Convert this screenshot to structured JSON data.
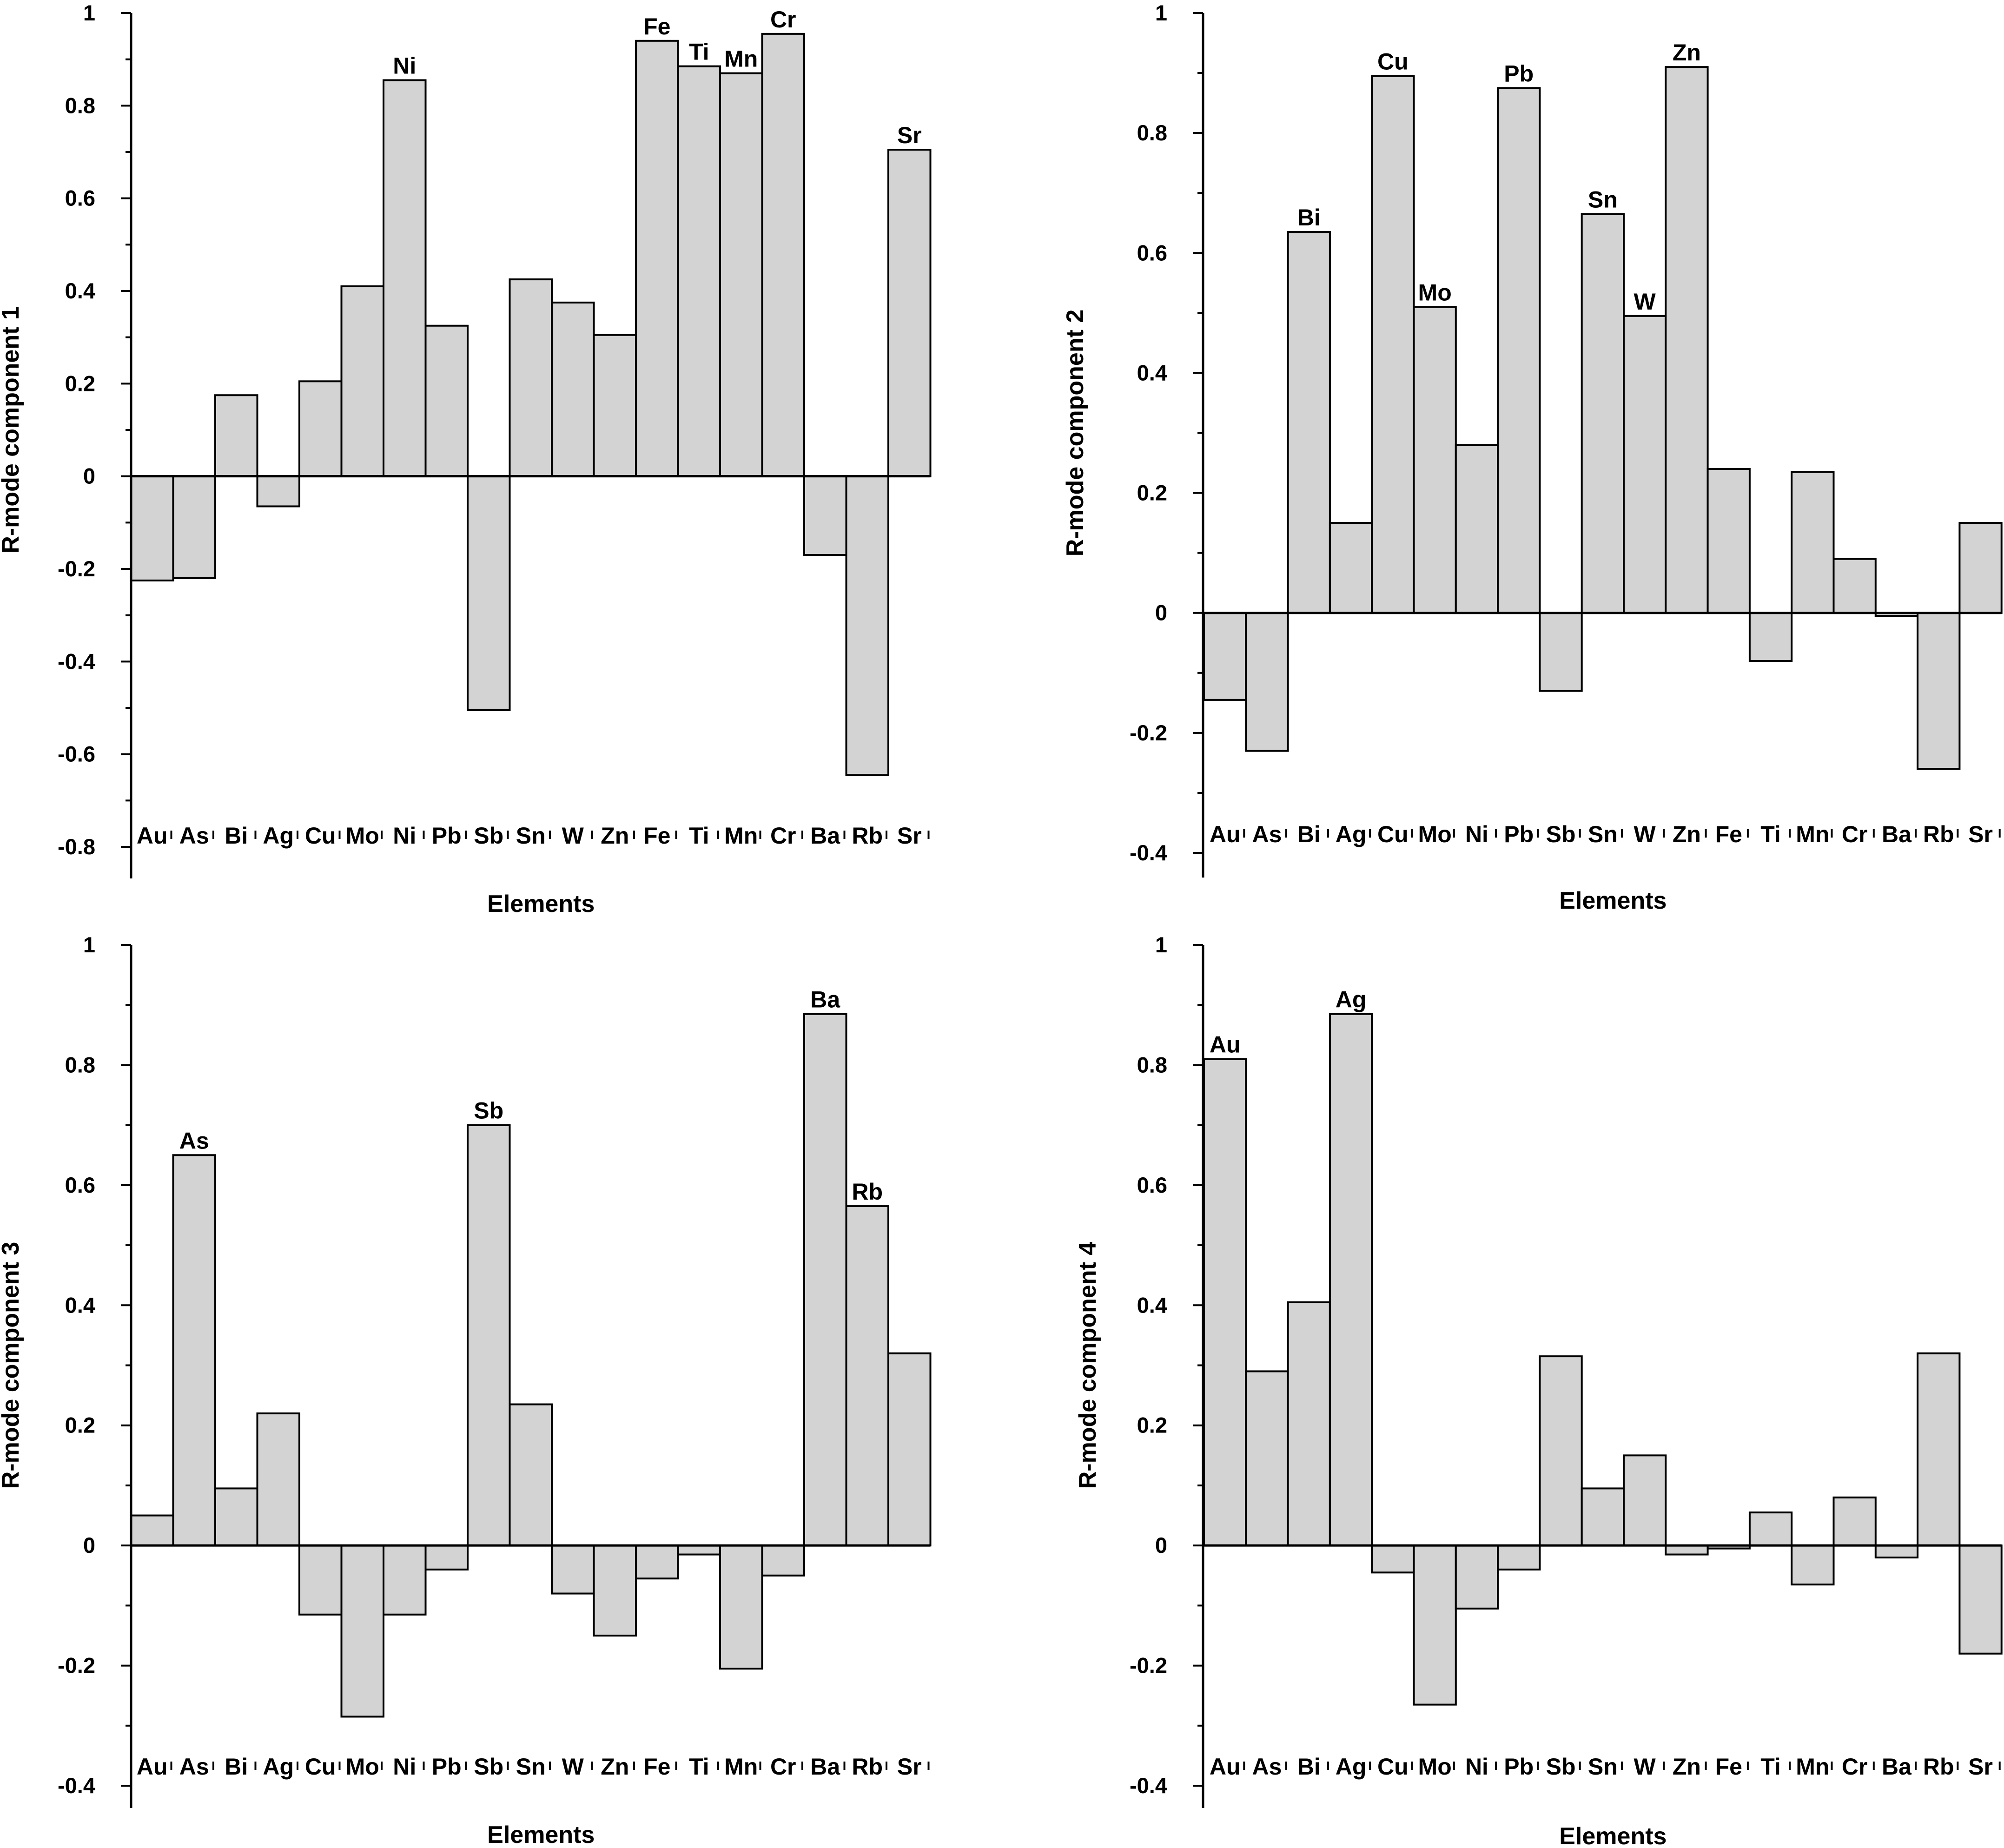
{
  "chart_data": [
    {
      "type": "bar",
      "ylabel": "R-mode component 1",
      "xlabel": "Elements",
      "ylim": [
        -0.8,
        1
      ],
      "yticks": [
        "1",
        "0.8",
        "0.6",
        "0.4",
        "0.2",
        "0",
        "-0.2",
        "-0.4",
        "-0.6",
        "-0.8"
      ],
      "categories": [
        "Au",
        "As",
        "Bi",
        "Ag",
        "Cu",
        "Mo",
        "Ni",
        "Pb",
        "Sb",
        "Sn",
        "W",
        "Zn",
        "Fe",
        "Ti",
        "Mn",
        "Cr",
        "Ba",
        "Rb",
        "Sr"
      ],
      "values": [
        -0.225,
        -0.22,
        0.175,
        -0.065,
        0.205,
        0.41,
        0.855,
        0.325,
        -0.505,
        0.425,
        0.375,
        0.305,
        0.94,
        0.885,
        0.87,
        0.955,
        -0.17,
        -0.645,
        0.705
      ],
      "bar_labels": [
        "",
        "",
        "",
        "",
        "",
        "",
        "Ni",
        "",
        "",
        "",
        "",
        "",
        "Fe",
        "Ti",
        "Mn",
        "Cr",
        "",
        "",
        "Sr"
      ],
      "grid": false
    },
    {
      "type": "bar",
      "ylabel": "R-mode component 2",
      "xlabel": "Elements",
      "ylim": [
        -0.4,
        1
      ],
      "yticks": [
        "1",
        "0.8",
        "0.6",
        "0.4",
        "0.2",
        "0",
        "-0.2",
        "-0.4"
      ],
      "categories": [
        "Au",
        "As",
        "Bi",
        "Ag",
        "Cu",
        "Mo",
        "Ni",
        "Pb",
        "Sb",
        "Sn",
        "W",
        "Zn",
        "Fe",
        "Ti",
        "Mn",
        "Cr",
        "Ba",
        "Rb",
        "Sr"
      ],
      "values": [
        -0.145,
        -0.23,
        0.635,
        0.15,
        0.895,
        0.51,
        0.28,
        0.875,
        -0.13,
        0.665,
        0.495,
        0.91,
        0.24,
        -0.08,
        0.235,
        0.09,
        -0.005,
        -0.26,
        0.15
      ],
      "bar_labels": [
        "",
        "",
        "Bi",
        "",
        "Cu",
        "Mo",
        "",
        "Pb",
        "",
        "Sn",
        "W",
        "Zn",
        "",
        "",
        "",
        "",
        "",
        "",
        ""
      ],
      "grid": false
    },
    {
      "type": "bar",
      "ylabel": "R-mode component 3",
      "xlabel": "Elements",
      "ylim": [
        -0.4,
        1
      ],
      "yticks": [
        "1",
        "0.8",
        "0.6",
        "0.4",
        "0.2",
        "0",
        "-0.2",
        "-0.4"
      ],
      "categories": [
        "Au",
        "As",
        "Bi",
        "Ag",
        "Cu",
        "Mo",
        "Ni",
        "Pb",
        "Sb",
        "Sn",
        "W",
        "Zn",
        "Fe",
        "Ti",
        "Mn",
        "Cr",
        "Ba",
        "Rb",
        "Sr"
      ],
      "values": [
        0.05,
        0.65,
        0.095,
        0.22,
        -0.115,
        -0.285,
        -0.115,
        -0.04,
        0.7,
        0.235,
        -0.08,
        -0.15,
        -0.055,
        -0.015,
        -0.205,
        -0.05,
        0.885,
        0.565,
        0.32
      ],
      "bar_labels": [
        "",
        "As",
        "",
        "",
        "",
        "",
        "",
        "",
        "Sb",
        "",
        "",
        "",
        "",
        "",
        "",
        "",
        "Ba",
        "Rb",
        ""
      ],
      "grid": false
    },
    {
      "type": "bar",
      "ylabel": "R-mode component 4",
      "xlabel": "Elements",
      "ylim": [
        -0.4,
        1
      ],
      "yticks": [
        "1",
        "0.8",
        "0.6",
        "0.4",
        "0.2",
        "0",
        "-0.2",
        "-0.4"
      ],
      "categories": [
        "Au",
        "As",
        "Bi",
        "Ag",
        "Cu",
        "Mo",
        "Ni",
        "Pb",
        "Sb",
        "Sn",
        "W",
        "Zn",
        "Fe",
        "Ti",
        "Mn",
        "Cr",
        "Ba",
        "Rb",
        "Sr"
      ],
      "values": [
        0.81,
        0.29,
        0.405,
        0.885,
        -0.045,
        -0.265,
        -0.105,
        -0.04,
        0.315,
        0.095,
        0.15,
        -0.015,
        -0.005,
        0.055,
        -0.065,
        0.08,
        -0.02,
        0.32,
        -0.18
      ],
      "bar_labels": [
        "Au",
        "",
        "",
        "Ag",
        "",
        "",
        "",
        "",
        "",
        "",
        "",
        "",
        "",
        "",
        "",
        "",
        "",
        "",
        ""
      ],
      "grid": false
    }
  ]
}
